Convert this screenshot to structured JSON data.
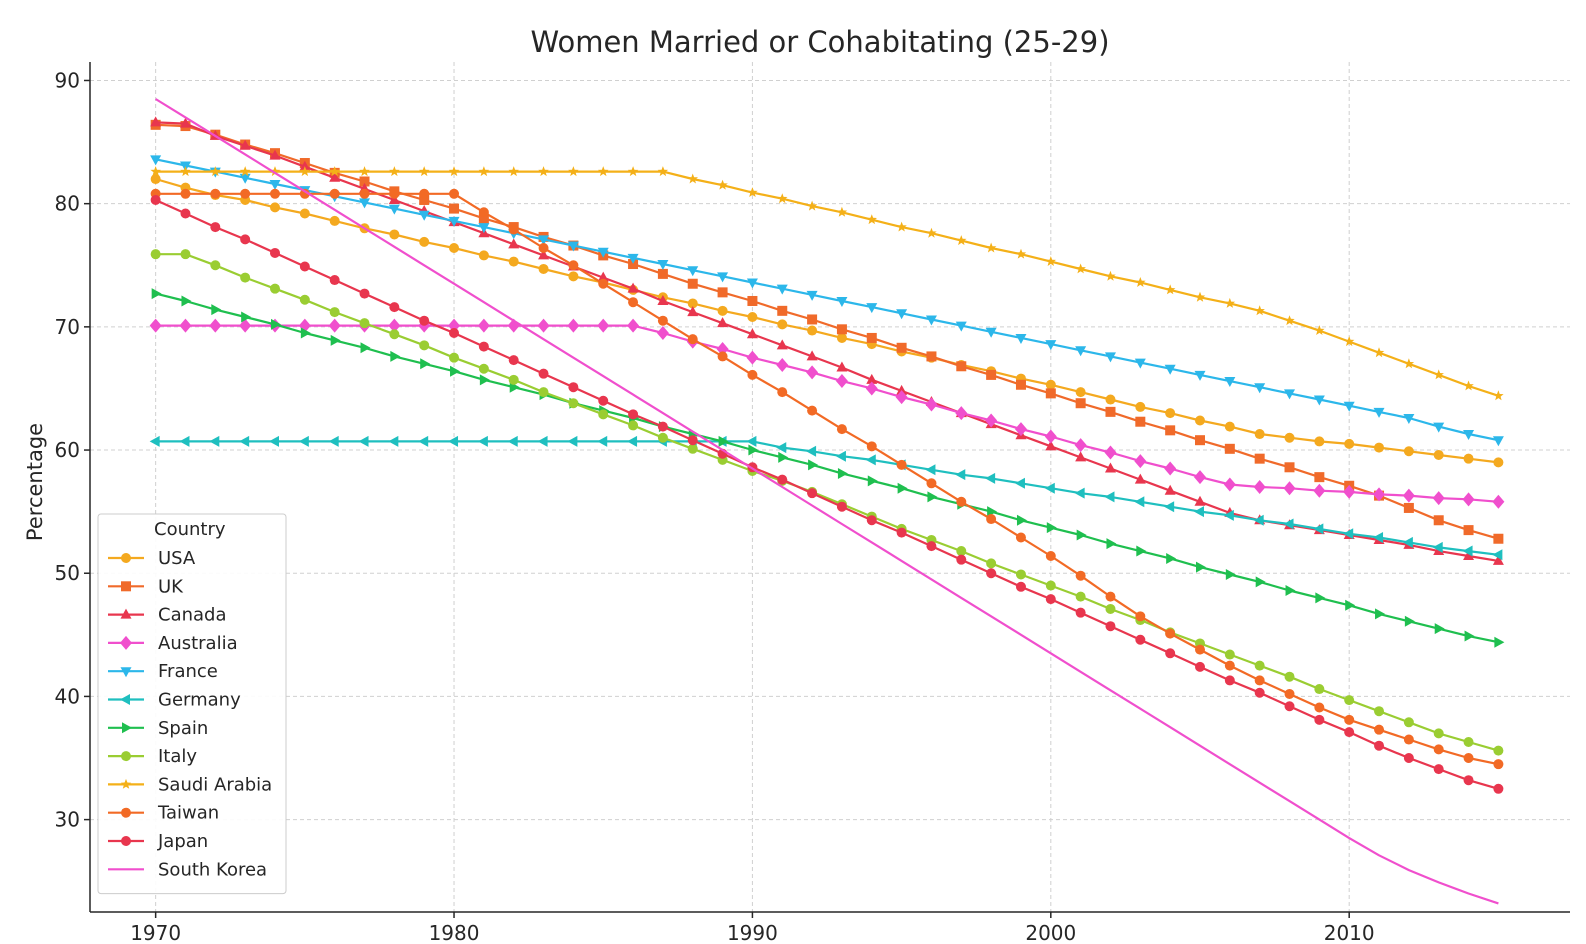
{
  "chart_data": {
    "type": "line",
    "title": "Women Married or Cohabitating (25-29)",
    "xlabel": "",
    "ylabel": "Percentage",
    "xlim": [
      1967.8,
      2017.4
    ],
    "ylim": [
      22.5,
      91.5
    ],
    "x_ticks": [
      1970,
      1980,
      1990,
      2000,
      2010
    ],
    "y_ticks": [
      30,
      40,
      50,
      60,
      70,
      80,
      90
    ],
    "grid": true,
    "legend": {
      "title": "Country",
      "position": "lower-left"
    },
    "x": [
      1970,
      1971,
      1972,
      1973,
      1974,
      1975,
      1976,
      1977,
      1978,
      1979,
      1980,
      1981,
      1982,
      1983,
      1984,
      1985,
      1986,
      1987,
      1988,
      1989,
      1990,
      1991,
      1992,
      1993,
      1994,
      1995,
      1996,
      1997,
      1998,
      1999,
      2000,
      2001,
      2002,
      2003,
      2004,
      2005,
      2006,
      2007,
      2008,
      2009,
      2010,
      2011,
      2012,
      2013,
      2014,
      2015
    ],
    "series": [
      {
        "name": "USA",
        "color": "#f4a91f",
        "marker": "circle",
        "values": [
          82.0,
          81.3,
          80.7,
          80.3,
          79.7,
          79.2,
          78.6,
          78.0,
          77.5,
          76.9,
          76.4,
          75.8,
          75.3,
          74.7,
          74.1,
          73.6,
          73.0,
          72.4,
          71.9,
          71.3,
          70.8,
          70.2,
          69.7,
          69.1,
          68.6,
          68.0,
          67.5,
          66.9,
          66.4,
          65.8,
          65.3,
          64.7,
          64.1,
          63.5,
          63.0,
          62.4,
          61.9,
          61.3,
          61.0,
          60.7,
          60.5,
          60.2,
          59.9,
          59.6,
          59.3,
          59.0
        ]
      },
      {
        "name": "UK",
        "color": "#f06a2a",
        "marker": "square",
        "values": [
          86.4,
          86.3,
          85.6,
          84.8,
          84.1,
          83.3,
          82.5,
          81.8,
          81.0,
          80.3,
          79.6,
          78.8,
          78.1,
          77.3,
          76.6,
          75.8,
          75.1,
          74.3,
          73.5,
          72.8,
          72.1,
          71.3,
          70.6,
          69.8,
          69.1,
          68.3,
          67.6,
          66.8,
          66.1,
          65.3,
          64.6,
          63.8,
          63.1,
          62.3,
          61.6,
          60.8,
          60.1,
          59.3,
          58.6,
          57.8,
          57.1,
          56.3,
          55.3,
          54.3,
          53.5,
          52.8
        ]
      },
      {
        "name": "Canada",
        "color": "#e8364e",
        "marker": "triangle-up",
        "values": [
          86.6,
          86.5,
          85.5,
          84.7,
          83.9,
          83.0,
          82.1,
          81.2,
          80.3,
          79.4,
          78.5,
          77.6,
          76.7,
          75.8,
          74.9,
          74.0,
          73.1,
          72.1,
          71.2,
          70.3,
          69.4,
          68.5,
          67.6,
          66.7,
          65.7,
          64.8,
          63.9,
          63.0,
          62.1,
          61.2,
          60.3,
          59.4,
          58.5,
          57.6,
          56.7,
          55.8,
          54.9,
          54.3,
          53.9,
          53.5,
          53.1,
          52.7,
          52.3,
          51.8,
          51.4,
          51.0
        ]
      },
      {
        "name": "Australia",
        "color": "#f04fcd",
        "marker": "diamond",
        "values": [
          70.1,
          70.1,
          70.1,
          70.1,
          70.1,
          70.1,
          70.1,
          70.1,
          70.1,
          70.1,
          70.1,
          70.1,
          70.1,
          70.1,
          70.1,
          70.1,
          70.1,
          69.5,
          68.8,
          68.2,
          67.5,
          66.9,
          66.3,
          65.6,
          65.0,
          64.3,
          63.7,
          63.0,
          62.4,
          61.7,
          61.1,
          60.4,
          59.8,
          59.1,
          58.5,
          57.8,
          57.2,
          57.0,
          56.9,
          56.7,
          56.6,
          56.4,
          56.3,
          56.1,
          56.0,
          55.8
        ]
      },
      {
        "name": "France",
        "color": "#2cb7ea",
        "marker": "triangle-down",
        "values": [
          83.6,
          83.1,
          82.6,
          82.1,
          81.6,
          81.1,
          80.6,
          80.1,
          79.6,
          79.1,
          78.6,
          78.1,
          77.6,
          77.1,
          76.6,
          76.1,
          75.6,
          75.1,
          74.6,
          74.1,
          73.6,
          73.1,
          72.6,
          72.1,
          71.6,
          71.1,
          70.6,
          70.1,
          69.6,
          69.1,
          68.6,
          68.1,
          67.6,
          67.1,
          66.6,
          66.1,
          65.6,
          65.1,
          64.6,
          64.1,
          63.6,
          63.1,
          62.6,
          61.9,
          61.3,
          60.8
        ]
      },
      {
        "name": "Germany",
        "color": "#1fbfbf",
        "marker": "triangle-left",
        "values": [
          60.7,
          60.7,
          60.7,
          60.7,
          60.7,
          60.7,
          60.7,
          60.7,
          60.7,
          60.7,
          60.7,
          60.7,
          60.7,
          60.7,
          60.7,
          60.7,
          60.7,
          60.7,
          60.7,
          60.7,
          60.7,
          60.2,
          59.9,
          59.5,
          59.2,
          58.8,
          58.4,
          58.0,
          57.7,
          57.3,
          56.9,
          56.5,
          56.2,
          55.8,
          55.4,
          55.0,
          54.7,
          54.3,
          54.0,
          53.6,
          53.2,
          52.9,
          52.5,
          52.1,
          51.8,
          51.5
        ]
      },
      {
        "name": "Spain",
        "color": "#1fbf4f",
        "marker": "triangle-right",
        "values": [
          72.7,
          72.1,
          71.4,
          70.8,
          70.2,
          69.5,
          68.9,
          68.3,
          67.6,
          67.0,
          66.4,
          65.7,
          65.1,
          64.5,
          63.8,
          63.2,
          62.6,
          61.9,
          61.3,
          60.7,
          60.0,
          59.4,
          58.8,
          58.1,
          57.5,
          56.9,
          56.2,
          55.6,
          55.0,
          54.3,
          53.7,
          53.1,
          52.4,
          51.8,
          51.2,
          50.5,
          49.9,
          49.3,
          48.6,
          48.0,
          47.4,
          46.7,
          46.1,
          45.5,
          44.9,
          44.4
        ]
      },
      {
        "name": "Italy",
        "color": "#9acd32",
        "marker": "circle",
        "values": [
          75.9,
          75.9,
          75.0,
          74.0,
          73.1,
          72.2,
          71.2,
          70.3,
          69.4,
          68.5,
          67.5,
          66.6,
          65.7,
          64.7,
          63.8,
          62.9,
          62.0,
          61.0,
          60.1,
          59.2,
          58.3,
          57.5,
          56.6,
          55.6,
          54.6,
          53.6,
          52.7,
          51.8,
          50.8,
          49.9,
          49.0,
          48.1,
          47.1,
          46.2,
          45.2,
          44.3,
          43.4,
          42.5,
          41.6,
          40.6,
          39.7,
          38.8,
          37.9,
          37.0,
          36.3,
          35.6
        ]
      },
      {
        "name": "Saudi Arabia",
        "color": "#f4b018",
        "marker": "star",
        "values": [
          82.6,
          82.6,
          82.6,
          82.6,
          82.6,
          82.6,
          82.6,
          82.6,
          82.6,
          82.6,
          82.6,
          82.6,
          82.6,
          82.6,
          82.6,
          82.6,
          82.6,
          82.6,
          82.0,
          81.5,
          80.9,
          80.4,
          79.8,
          79.3,
          78.7,
          78.1,
          77.6,
          77.0,
          76.4,
          75.9,
          75.3,
          74.7,
          74.1,
          73.6,
          73.0,
          72.4,
          71.9,
          71.3,
          70.5,
          69.7,
          68.8,
          67.9,
          67.0,
          66.1,
          65.2,
          64.4
        ]
      },
      {
        "name": "Taiwan",
        "color": "#f26a25",
        "marker": "circle",
        "values": [
          80.8,
          80.8,
          80.8,
          80.8,
          80.8,
          80.8,
          80.8,
          80.8,
          80.8,
          80.8,
          80.8,
          79.3,
          77.9,
          76.4,
          75.0,
          73.5,
          72.0,
          70.5,
          69.0,
          67.6,
          66.1,
          64.7,
          63.2,
          61.7,
          60.3,
          58.8,
          57.3,
          55.8,
          54.4,
          52.9,
          51.4,
          49.8,
          48.1,
          46.5,
          45.1,
          43.8,
          42.5,
          41.3,
          40.2,
          39.1,
          38.1,
          37.3,
          36.5,
          35.7,
          35.0,
          34.5
        ]
      },
      {
        "name": "Japan",
        "color": "#e8364e",
        "marker": "circle",
        "values": [
          80.3,
          79.2,
          78.1,
          77.1,
          76.0,
          74.9,
          73.8,
          72.7,
          71.6,
          70.5,
          69.5,
          68.4,
          67.3,
          66.2,
          65.1,
          64.0,
          62.9,
          61.9,
          60.8,
          59.7,
          58.6,
          57.6,
          56.5,
          55.4,
          54.3,
          53.3,
          52.2,
          51.1,
          50.0,
          48.9,
          47.9,
          46.8,
          45.7,
          44.6,
          43.5,
          42.4,
          41.3,
          40.3,
          39.2,
          38.1,
          37.1,
          36.0,
          35.0,
          34.1,
          33.2,
          32.5
        ]
      },
      {
        "name": "South Korea",
        "color": "#f04fcd",
        "marker": "none",
        "values": [
          88.5,
          87.0,
          85.5,
          84.0,
          82.5,
          81.0,
          79.5,
          78.0,
          76.5,
          75.0,
          73.5,
          72.0,
          70.5,
          69.0,
          67.5,
          66.0,
          64.5,
          63.0,
          61.5,
          60.0,
          58.5,
          57.0,
          55.5,
          54.0,
          52.5,
          51.0,
          49.5,
          48.0,
          46.5,
          45.0,
          43.5,
          42.0,
          40.5,
          39.0,
          37.5,
          36.0,
          34.5,
          33.0,
          31.5,
          30.0,
          28.5,
          27.1,
          25.9,
          24.9,
          24.0,
          23.2
        ]
      }
    ]
  }
}
